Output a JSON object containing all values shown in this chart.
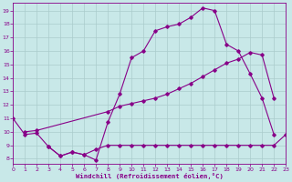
{
  "bg_color": "#c8e8e8",
  "line_color": "#880088",
  "grid_color": "#aacccc",
  "xlabel": "Windchill (Refroidissement éolien,°C)",
  "xlim": [
    0,
    23
  ],
  "ylim": [
    7.6,
    19.6
  ],
  "yticks": [
    8,
    9,
    10,
    11,
    12,
    13,
    14,
    15,
    16,
    17,
    18,
    19
  ],
  "xticks": [
    0,
    1,
    2,
    3,
    4,
    5,
    6,
    7,
    8,
    9,
    10,
    11,
    12,
    13,
    14,
    15,
    16,
    17,
    18,
    19,
    20,
    21,
    22,
    23
  ],
  "line1_x": [
    0,
    1,
    2,
    3,
    4,
    5,
    6,
    7,
    8,
    9,
    10,
    11,
    12,
    13,
    14,
    15,
    16,
    17,
    18,
    19,
    20,
    21,
    22
  ],
  "line1_y": [
    11.0,
    9.8,
    9.9,
    8.9,
    8.2,
    8.5,
    8.3,
    7.9,
    10.7,
    12.8,
    15.5,
    16.0,
    17.5,
    17.8,
    18.0,
    18.5,
    19.2,
    19.0,
    16.5,
    16.0,
    14.3,
    12.5,
    9.8
  ],
  "line2_x": [
    1,
    2,
    8,
    9,
    10,
    11,
    12,
    13,
    14,
    15,
    16,
    17,
    18,
    19,
    20,
    21,
    22
  ],
  "line2_y": [
    10.0,
    10.1,
    11.5,
    11.9,
    12.1,
    12.3,
    12.5,
    12.8,
    13.2,
    13.6,
    14.1,
    14.6,
    15.1,
    15.4,
    15.9,
    15.7,
    12.5
  ],
  "line3_x": [
    3,
    4,
    5,
    6,
    7,
    8,
    9,
    10,
    11,
    12,
    13,
    14,
    15,
    16,
    17,
    18,
    19,
    20,
    21,
    22,
    23
  ],
  "line3_y": [
    8.9,
    8.2,
    8.5,
    8.3,
    8.7,
    9.0,
    9.0,
    9.0,
    9.0,
    9.0,
    9.0,
    9.0,
    9.0,
    9.0,
    9.0,
    9.0,
    9.0,
    9.0,
    9.0,
    9.0,
    9.8
  ]
}
